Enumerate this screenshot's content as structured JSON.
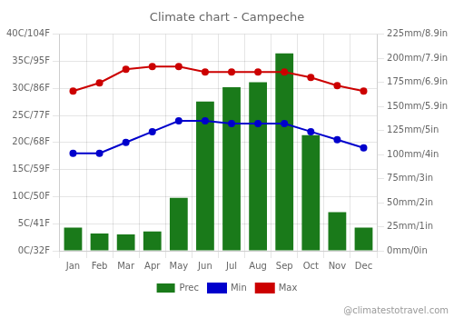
{
  "chart_data": {
    "type": "bar",
    "title": "Climate chart - Campeche",
    "categories": [
      "Jan",
      "Feb",
      "Mar",
      "Apr",
      "May",
      "Jun",
      "Jul",
      "Aug",
      "Sep",
      "Oct",
      "Nov",
      "Dec"
    ],
    "series": [
      {
        "name": "Prec",
        "type": "bar",
        "color": "#1a7a1a",
        "axis": "y2",
        "values": [
          24,
          18,
          17,
          20,
          55,
          155,
          170,
          175,
          205,
          120,
          40,
          24
        ]
      },
      {
        "name": "Min",
        "type": "line",
        "color": "#0000cc",
        "marker": "circle",
        "values": [
          18,
          18,
          20,
          22,
          24,
          24,
          23.5,
          23.5,
          23.5,
          22,
          20.5,
          19
        ]
      },
      {
        "name": "Max",
        "type": "line",
        "color": "#cc0000",
        "marker": "circle",
        "values": [
          29.5,
          31,
          33.5,
          34,
          34,
          33,
          33,
          33,
          33,
          32,
          30.5,
          29.5
        ]
      }
    ],
    "ylim": [
      0,
      40
    ],
    "yticks": [
      {
        "value": 0,
        "label": "0C/32F"
      },
      {
        "value": 5,
        "label": "5C/41F"
      },
      {
        "value": 10,
        "label": "10C/50F"
      },
      {
        "value": 15,
        "label": "15C/59F"
      },
      {
        "value": 20,
        "label": "20C/68F"
      },
      {
        "value": 25,
        "label": "25C/77F"
      },
      {
        "value": 30,
        "label": "30C/86F"
      },
      {
        "value": 35,
        "label": "35C/95F"
      },
      {
        "value": 40,
        "label": "40C/104F"
      }
    ],
    "y2lim": [
      0,
      225
    ],
    "y2ticks": [
      {
        "value": 0,
        "label": "0mm/0in"
      },
      {
        "value": 25,
        "label": "25mm/1in"
      },
      {
        "value": 50,
        "label": "50mm/2in"
      },
      {
        "value": 75,
        "label": "75mm/3in"
      },
      {
        "value": 100,
        "label": "100mm/4in"
      },
      {
        "value": 125,
        "label": "125mm/5in"
      },
      {
        "value": 150,
        "label": "150mm/5.9in"
      },
      {
        "value": 175,
        "label": "175mm/6.9in"
      },
      {
        "value": 200,
        "label": "200mm/7.9in"
      },
      {
        "value": 225,
        "label": "225mm/8.9in"
      }
    ],
    "grid": true,
    "legend": "bottom",
    "annotations": [
      "@climatestotravel.com"
    ]
  }
}
